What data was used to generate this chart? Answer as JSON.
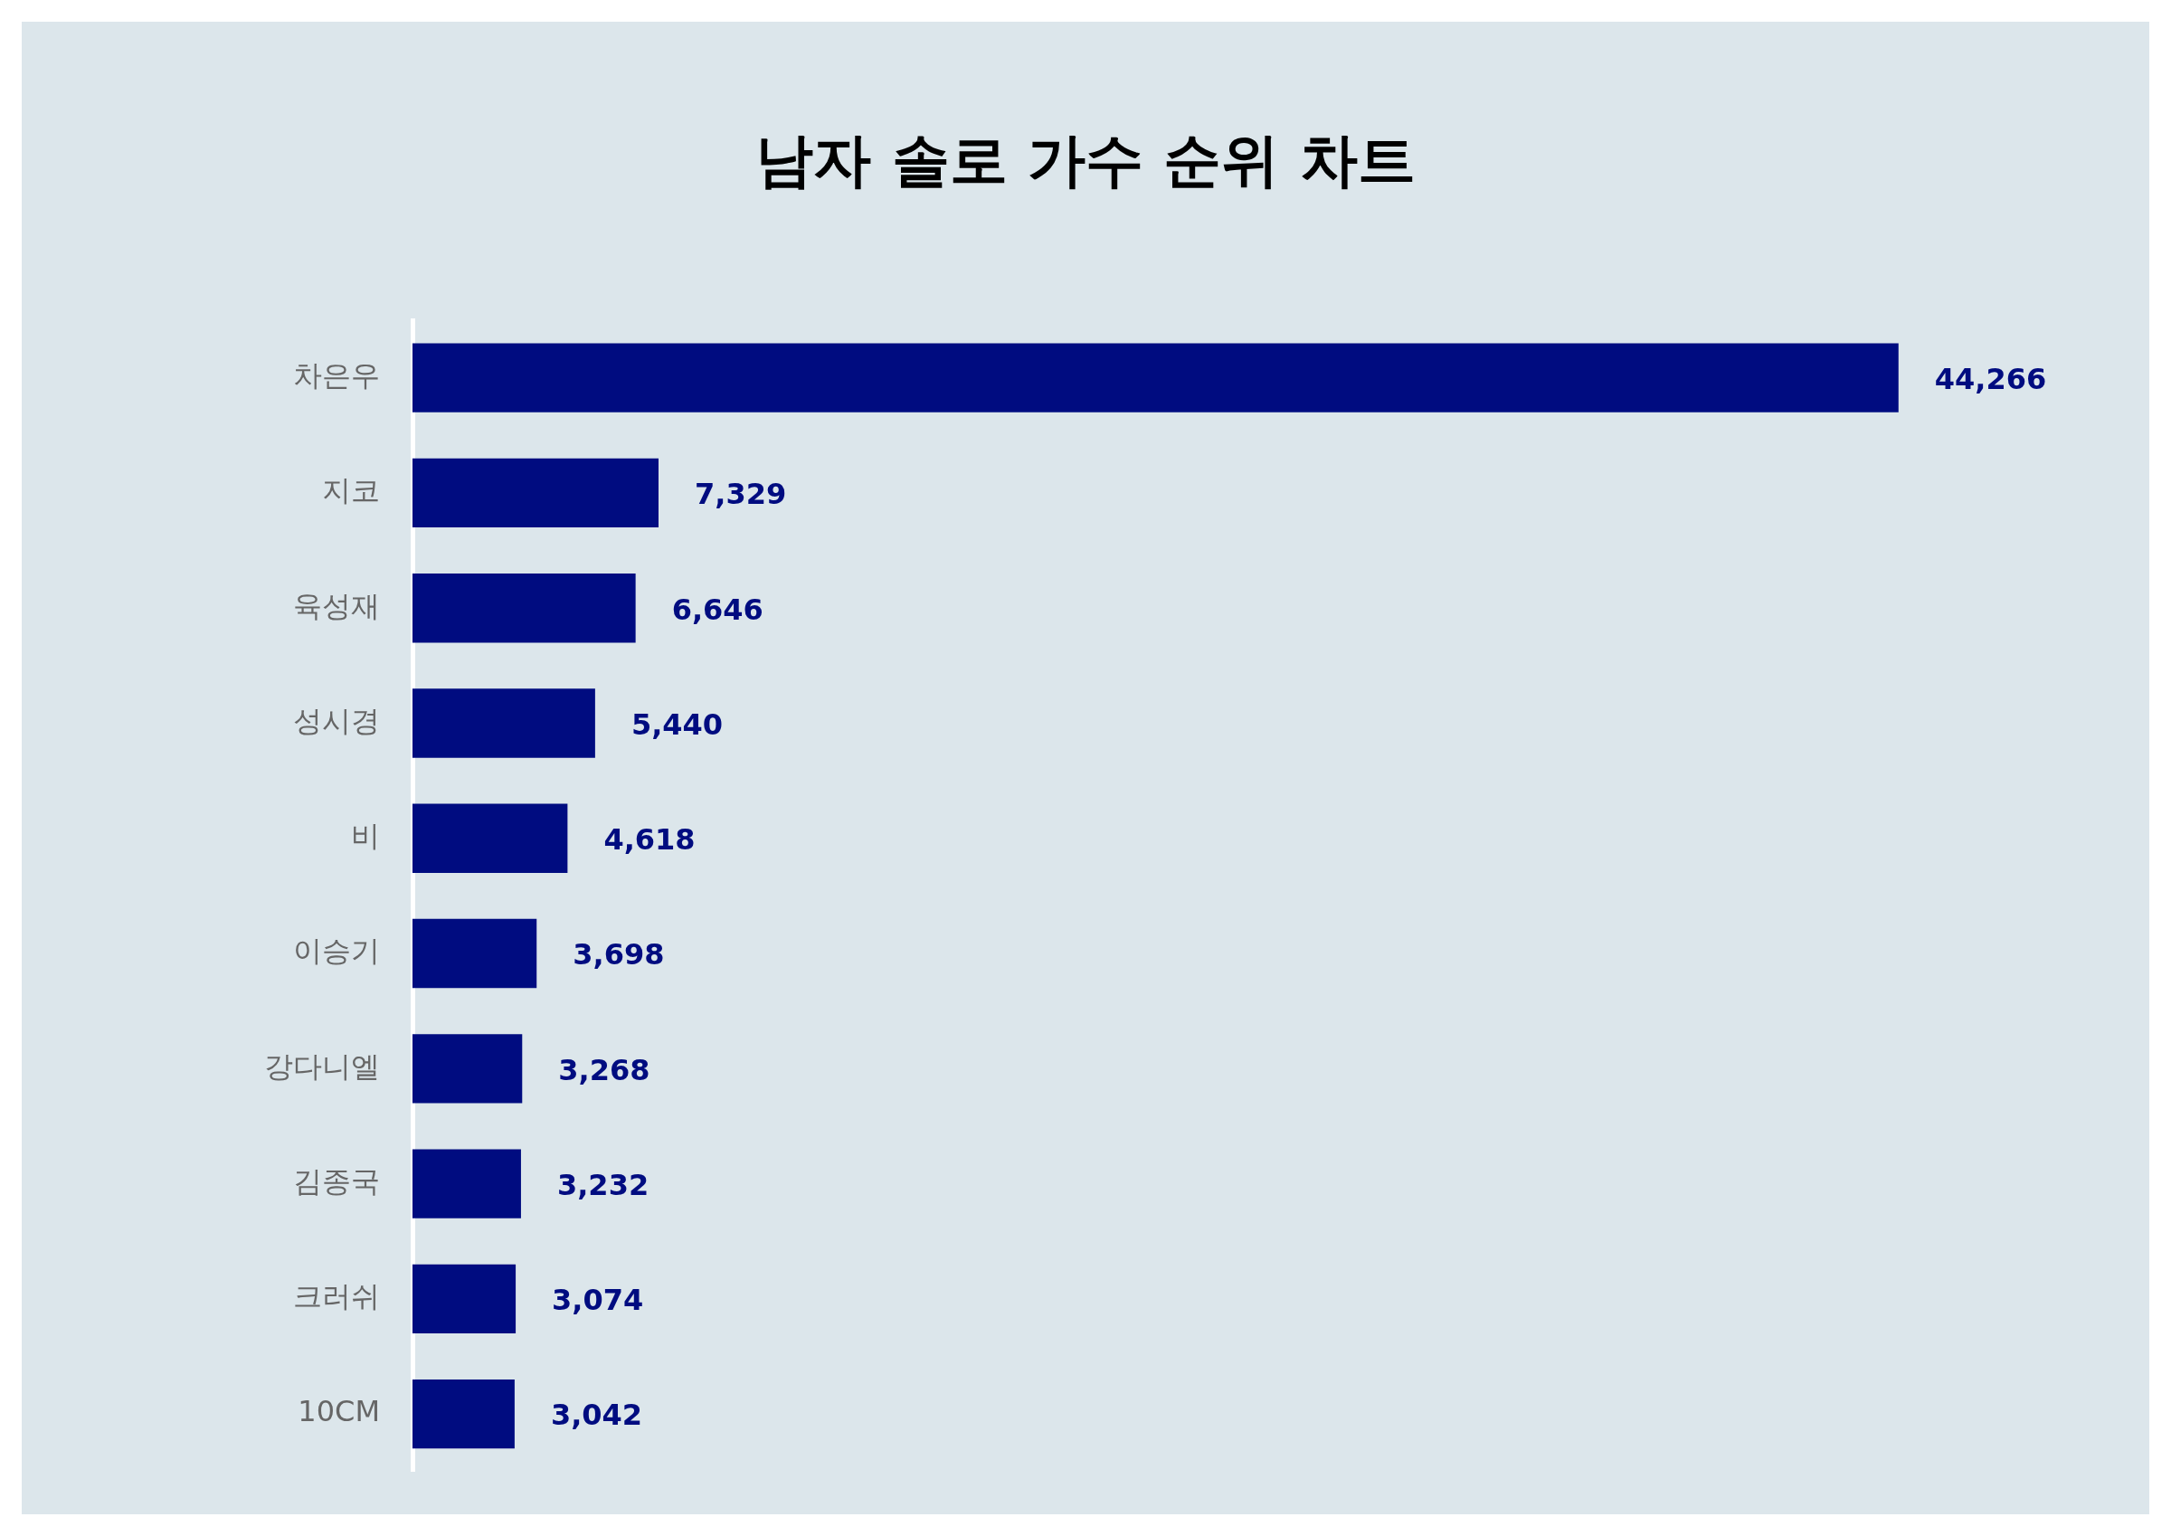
{
  "chart_data": {
    "type": "bar",
    "orientation": "horizontal",
    "title": "남자 솔로 가수 순위 차트",
    "categories": [
      "차은우",
      "지코",
      "육성재",
      "성시경",
      "비",
      "이승기",
      "강다니엘",
      "김종국",
      "크러쉬",
      "10CM"
    ],
    "values": [
      44266,
      7329,
      6646,
      5440,
      4618,
      3698,
      3268,
      3232,
      3074,
      3042
    ],
    "value_labels": [
      "44,266",
      "7,329",
      "6,646",
      "5,440",
      "4,618",
      "3,698",
      "3,268",
      "3,232",
      "3,074",
      "3,042"
    ],
    "color": "#000c80",
    "tick_labels": "y",
    "legend": false
  }
}
